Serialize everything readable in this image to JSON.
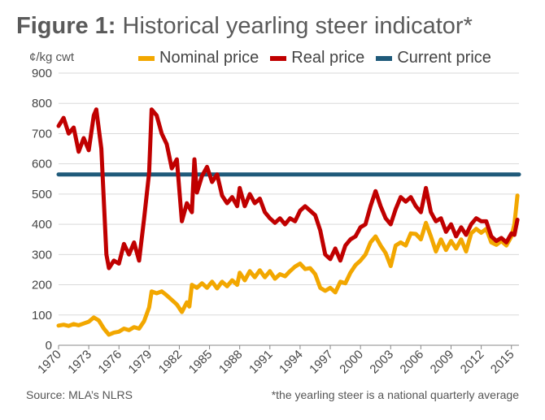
{
  "title": {
    "lead": "Figure 1:",
    "main": "Historical yearling steer indicator*"
  },
  "ylabel_text": "¢/kg cwt",
  "legend": [
    {
      "label": "Nominal price",
      "color": "#f2a700"
    },
    {
      "label": "Real price",
      "color": "#c00000"
    },
    {
      "label": "Current price",
      "color": "#1f5a7a"
    }
  ],
  "source": "Source: MLA’s NLRS",
  "note": "*the yearling steer is a national quarterly average",
  "chart_data": {
    "type": "line",
    "ylabel": "¢/kg cwt",
    "ylim": [
      0,
      900
    ],
    "yticks": [
      0,
      100,
      200,
      300,
      400,
      500,
      600,
      700,
      800,
      900
    ],
    "xlim": [
      1970,
      2015.75
    ],
    "xticks": [
      "1970",
      "1973",
      "1976",
      "1979",
      "1982",
      "1985",
      "1988",
      "1991",
      "1994",
      "1997",
      "2000",
      "2003",
      "2006",
      "2009",
      "2012",
      "2015"
    ],
    "grid": "horizontal",
    "legend_position": "top",
    "series": [
      {
        "name": "Nominal price",
        "color": "#f2a700",
        "points": [
          [
            1970.0,
            65
          ],
          [
            1970.5,
            68
          ],
          [
            1971.0,
            64
          ],
          [
            1971.5,
            70
          ],
          [
            1972.0,
            66
          ],
          [
            1972.5,
            72
          ],
          [
            1973.0,
            78
          ],
          [
            1973.5,
            92
          ],
          [
            1974.0,
            82
          ],
          [
            1974.5,
            55
          ],
          [
            1975.0,
            35
          ],
          [
            1975.5,
            42
          ],
          [
            1976.0,
            45
          ],
          [
            1976.5,
            55
          ],
          [
            1977.0,
            50
          ],
          [
            1977.5,
            60
          ],
          [
            1978.0,
            55
          ],
          [
            1978.5,
            80
          ],
          [
            1979.0,
            125
          ],
          [
            1979.25,
            178
          ],
          [
            1979.75,
            172
          ],
          [
            1980.25,
            178
          ],
          [
            1980.75,
            165
          ],
          [
            1981.25,
            150
          ],
          [
            1981.75,
            135
          ],
          [
            1982.25,
            110
          ],
          [
            1982.75,
            142
          ],
          [
            1983.0,
            128
          ],
          [
            1983.25,
            200
          ],
          [
            1983.75,
            190
          ],
          [
            1984.25,
            205
          ],
          [
            1984.75,
            190
          ],
          [
            1985.25,
            210
          ],
          [
            1985.75,
            188
          ],
          [
            1986.25,
            210
          ],
          [
            1986.75,
            195
          ],
          [
            1987.25,
            215
          ],
          [
            1987.75,
            200
          ],
          [
            1988.0,
            240
          ],
          [
            1988.5,
            215
          ],
          [
            1989.0,
            245
          ],
          [
            1989.5,
            225
          ],
          [
            1990.0,
            248
          ],
          [
            1990.5,
            225
          ],
          [
            1991.0,
            245
          ],
          [
            1991.5,
            220
          ],
          [
            1992.0,
            235
          ],
          [
            1992.5,
            228
          ],
          [
            1993.0,
            245
          ],
          [
            1993.5,
            260
          ],
          [
            1994.0,
            270
          ],
          [
            1994.5,
            252
          ],
          [
            1995.0,
            255
          ],
          [
            1995.5,
            235
          ],
          [
            1996.0,
            190
          ],
          [
            1996.5,
            180
          ],
          [
            1997.0,
            190
          ],
          [
            1997.5,
            175
          ],
          [
            1998.0,
            210
          ],
          [
            1998.5,
            205
          ],
          [
            1999.0,
            240
          ],
          [
            1999.5,
            265
          ],
          [
            2000.0,
            280
          ],
          [
            2000.5,
            300
          ],
          [
            2001.0,
            340
          ],
          [
            2001.5,
            360
          ],
          [
            2002.0,
            330
          ],
          [
            2002.5,
            305
          ],
          [
            2003.0,
            262
          ],
          [
            2003.5,
            330
          ],
          [
            2004.0,
            340
          ],
          [
            2004.5,
            330
          ],
          [
            2005.0,
            370
          ],
          [
            2005.5,
            368
          ],
          [
            2006.0,
            350
          ],
          [
            2006.5,
            405
          ],
          [
            2007.0,
            360
          ],
          [
            2007.5,
            310
          ],
          [
            2008.0,
            350
          ],
          [
            2008.5,
            315
          ],
          [
            2009.0,
            345
          ],
          [
            2009.5,
            320
          ],
          [
            2010.0,
            350
          ],
          [
            2010.5,
            310
          ],
          [
            2011.0,
            370
          ],
          [
            2011.5,
            385
          ],
          [
            2012.0,
            372
          ],
          [
            2012.5,
            385
          ],
          [
            2013.0,
            340
          ],
          [
            2013.5,
            332
          ],
          [
            2014.0,
            345
          ],
          [
            2014.5,
            330
          ],
          [
            2015.0,
            360
          ],
          [
            2015.3,
            400
          ],
          [
            2015.6,
            495
          ]
        ]
      },
      {
        "name": "Real price",
        "color": "#c00000",
        "points": [
          [
            1970.0,
            725
          ],
          [
            1970.5,
            752
          ],
          [
            1971.0,
            700
          ],
          [
            1971.5,
            720
          ],
          [
            1972.0,
            640
          ],
          [
            1972.5,
            685
          ],
          [
            1973.0,
            645
          ],
          [
            1973.5,
            760
          ],
          [
            1973.75,
            780
          ],
          [
            1974.25,
            650
          ],
          [
            1974.75,
            300
          ],
          [
            1975.0,
            255
          ],
          [
            1975.5,
            280
          ],
          [
            1976.0,
            270
          ],
          [
            1976.5,
            335
          ],
          [
            1977.0,
            300
          ],
          [
            1977.5,
            340
          ],
          [
            1978.0,
            280
          ],
          [
            1978.5,
            420
          ],
          [
            1979.0,
            570
          ],
          [
            1979.25,
            780
          ],
          [
            1979.75,
            760
          ],
          [
            1980.25,
            700
          ],
          [
            1980.75,
            665
          ],
          [
            1981.25,
            585
          ],
          [
            1981.75,
            615
          ],
          [
            1982.25,
            410
          ],
          [
            1982.75,
            470
          ],
          [
            1983.25,
            440
          ],
          [
            1983.5,
            615
          ],
          [
            1983.75,
            505
          ],
          [
            1984.25,
            560
          ],
          [
            1984.75,
            590
          ],
          [
            1985.25,
            540
          ],
          [
            1985.75,
            565
          ],
          [
            1986.25,
            495
          ],
          [
            1986.75,
            470
          ],
          [
            1987.25,
            490
          ],
          [
            1987.75,
            460
          ],
          [
            1988.0,
            520
          ],
          [
            1988.5,
            460
          ],
          [
            1989.0,
            500
          ],
          [
            1989.5,
            470
          ],
          [
            1990.0,
            485
          ],
          [
            1990.5,
            440
          ],
          [
            1991.0,
            420
          ],
          [
            1991.5,
            405
          ],
          [
            1992.0,
            420
          ],
          [
            1992.5,
            400
          ],
          [
            1993.0,
            420
          ],
          [
            1993.5,
            410
          ],
          [
            1994.0,
            445
          ],
          [
            1994.5,
            460
          ],
          [
            1995.0,
            445
          ],
          [
            1995.5,
            430
          ],
          [
            1996.0,
            380
          ],
          [
            1996.5,
            300
          ],
          [
            1997.0,
            285
          ],
          [
            1997.5,
            320
          ],
          [
            1998.0,
            280
          ],
          [
            1998.5,
            330
          ],
          [
            1999.0,
            350
          ],
          [
            1999.5,
            360
          ],
          [
            2000.0,
            390
          ],
          [
            2000.5,
            400
          ],
          [
            2001.0,
            460
          ],
          [
            2001.5,
            510
          ],
          [
            2002.0,
            460
          ],
          [
            2002.5,
            420
          ],
          [
            2003.0,
            400
          ],
          [
            2003.5,
            450
          ],
          [
            2004.0,
            490
          ],
          [
            2004.5,
            475
          ],
          [
            2005.0,
            490
          ],
          [
            2005.5,
            460
          ],
          [
            2006.0,
            440
          ],
          [
            2006.5,
            520
          ],
          [
            2007.0,
            440
          ],
          [
            2007.5,
            410
          ],
          [
            2008.0,
            420
          ],
          [
            2008.5,
            375
          ],
          [
            2009.0,
            400
          ],
          [
            2009.5,
            360
          ],
          [
            2010.0,
            390
          ],
          [
            2010.5,
            365
          ],
          [
            2011.0,
            400
          ],
          [
            2011.5,
            420
          ],
          [
            2012.0,
            410
          ],
          [
            2012.5,
            410
          ],
          [
            2013.0,
            360
          ],
          [
            2013.5,
            345
          ],
          [
            2014.0,
            355
          ],
          [
            2014.5,
            340
          ],
          [
            2015.0,
            370
          ],
          [
            2015.3,
            365
          ],
          [
            2015.6,
            415
          ]
        ]
      },
      {
        "name": "Current price",
        "color": "#1f5a7a",
        "points": [
          [
            1970.0,
            565
          ],
          [
            2015.75,
            565
          ]
        ]
      }
    ]
  }
}
